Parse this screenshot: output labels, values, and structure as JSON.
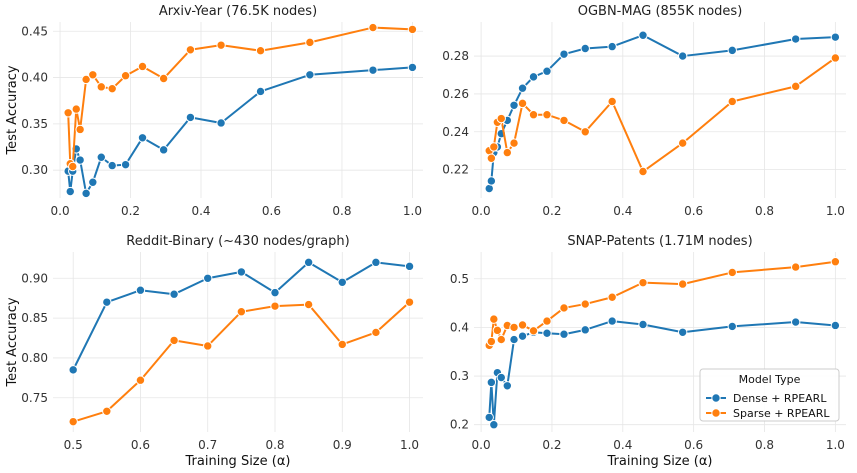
{
  "figure": {
    "legend": {
      "title": "Model Type",
      "placement": "lower-right of SNAP-Patents panel"
    },
    "series_style": [
      {
        "name": "Dense + RPEARL",
        "color": "#1f77b4"
      },
      {
        "name": "Sparse + RPEARL",
        "color": "#ff7f0e"
      }
    ]
  },
  "chart_data": [
    {
      "type": "line",
      "title": "Arxiv-Year (76.5K nodes)",
      "xlabel": "",
      "ylabel": "Test Accuracy",
      "xlim": [
        -0.02,
        1.03
      ],
      "ylim": [
        0.27,
        0.46
      ],
      "xticks": [
        0.0,
        0.2,
        0.4,
        0.6,
        0.8,
        1.0
      ],
      "xtick_labels": [
        "0.0",
        "0.2",
        "0.4",
        "0.6",
        "0.8",
        "1.0"
      ],
      "yticks": [
        0.3,
        0.35,
        0.4,
        0.45
      ],
      "ytick_labels": [
        "0.30",
        "0.35",
        "0.40",
        "0.45"
      ],
      "grid": true,
      "series": [
        {
          "name": "Dense + RPEARL",
          "x": [
            0.023,
            0.029,
            0.036,
            0.046,
            0.057,
            0.074,
            0.093,
            0.117,
            0.148,
            0.186,
            0.234,
            0.294,
            0.37,
            0.457,
            0.569,
            0.709,
            0.888,
            1.0
          ],
          "values": [
            0.299,
            0.277,
            0.299,
            0.323,
            0.311,
            0.275,
            0.287,
            0.314,
            0.305,
            0.306,
            0.335,
            0.322,
            0.357,
            0.351,
            0.385,
            0.403,
            0.408,
            0.411
          ]
        },
        {
          "name": "Sparse + RPEARL",
          "x": [
            0.023,
            0.029,
            0.036,
            0.046,
            0.057,
            0.074,
            0.093,
            0.117,
            0.148,
            0.186,
            0.234,
            0.294,
            0.37,
            0.457,
            0.569,
            0.709,
            0.888,
            1.0
          ],
          "values": [
            0.362,
            0.307,
            0.304,
            0.366,
            0.344,
            0.398,
            0.403,
            0.39,
            0.388,
            0.402,
            0.412,
            0.399,
            0.43,
            0.435,
            0.429,
            0.438,
            0.454,
            0.452
          ]
        }
      ]
    },
    {
      "type": "line",
      "title": "OGBN-MAG (855K nodes)",
      "xlabel": "",
      "ylabel": "",
      "xlim": [
        -0.02,
        1.03
      ],
      "ylim": [
        0.205,
        0.298
      ],
      "xticks": [
        0.0,
        0.2,
        0.4,
        0.6,
        0.8,
        1.0
      ],
      "xtick_labels": [
        "0.0",
        "0.2",
        "0.4",
        "0.6",
        "0.8",
        "1.0"
      ],
      "yticks": [
        0.22,
        0.24,
        0.26,
        0.28
      ],
      "ytick_labels": [
        "0.22",
        "0.24",
        "0.26",
        "0.28"
      ],
      "grid": true,
      "series": [
        {
          "name": "Dense + RPEARL",
          "x": [
            0.023,
            0.029,
            0.036,
            0.046,
            0.057,
            0.074,
            0.093,
            0.117,
            0.148,
            0.186,
            0.234,
            0.294,
            0.37,
            0.457,
            0.569,
            0.709,
            0.888,
            1.0
          ],
          "values": [
            0.21,
            0.214,
            0.229,
            0.232,
            0.239,
            0.246,
            0.254,
            0.263,
            0.269,
            0.272,
            0.281,
            0.284,
            0.285,
            0.291,
            0.28,
            0.283,
            0.289,
            0.29
          ]
        },
        {
          "name": "Sparse + RPEARL",
          "x": [
            0.023,
            0.029,
            0.036,
            0.046,
            0.057,
            0.074,
            0.093,
            0.117,
            0.148,
            0.186,
            0.234,
            0.294,
            0.37,
            0.457,
            0.569,
            0.709,
            0.888,
            1.0
          ],
          "values": [
            0.23,
            0.226,
            0.232,
            0.245,
            0.247,
            0.229,
            0.234,
            0.255,
            0.249,
            0.249,
            0.246,
            0.24,
            0.256,
            0.219,
            0.234,
            0.256,
            0.264,
            0.279
          ]
        }
      ]
    },
    {
      "type": "line",
      "title": "Reddit-Binary (~430 nodes/graph)",
      "xlabel": "Training Size (α)",
      "ylabel": "Test Accuracy",
      "xlim": [
        0.47,
        1.02
      ],
      "ylim": [
        0.707,
        0.933
      ],
      "xticks": [
        0.5,
        0.6,
        0.7,
        0.8,
        0.9,
        1.0
      ],
      "xtick_labels": [
        "0.5",
        "0.6",
        "0.7",
        "0.8",
        "0.9",
        "1.0"
      ],
      "yticks": [
        0.75,
        0.8,
        0.85,
        0.9
      ],
      "ytick_labels": [
        "0.75",
        "0.80",
        "0.85",
        "0.90"
      ],
      "grid": true,
      "series": [
        {
          "name": "Dense + RPEARL",
          "x": [
            0.5,
            0.55,
            0.6,
            0.65,
            0.7,
            0.75,
            0.8,
            0.85,
            0.9,
            0.95,
            1.0
          ],
          "values": [
            0.785,
            0.87,
            0.885,
            0.88,
            0.9,
            0.908,
            0.882,
            0.92,
            0.895,
            0.92,
            0.915
          ]
        },
        {
          "name": "Sparse + RPEARL",
          "x": [
            0.5,
            0.55,
            0.6,
            0.65,
            0.7,
            0.75,
            0.8,
            0.85,
            0.9,
            0.95,
            1.0
          ],
          "values": [
            0.72,
            0.733,
            0.772,
            0.822,
            0.815,
            0.858,
            0.865,
            0.867,
            0.817,
            0.832,
            0.87
          ]
        }
      ]
    },
    {
      "type": "line",
      "title": "SNAP-Patents (1.71M nodes)",
      "xlabel": "Training Size (α)",
      "ylabel": "",
      "xlim": [
        -0.02,
        1.03
      ],
      "ylim": [
        0.185,
        0.555
      ],
      "xticks": [
        0.0,
        0.2,
        0.4,
        0.6,
        0.8,
        1.0
      ],
      "xtick_labels": [
        "0.0",
        "0.2",
        "0.4",
        "0.6",
        "0.8",
        "1.0"
      ],
      "yticks": [
        0.2,
        0.3,
        0.4,
        0.5
      ],
      "ytick_labels": [
        "0.2",
        "0.3",
        "0.4",
        "0.5"
      ],
      "grid": true,
      "series": [
        {
          "name": "Dense + RPEARL",
          "x": [
            0.023,
            0.029,
            0.036,
            0.046,
            0.057,
            0.074,
            0.093,
            0.117,
            0.148,
            0.186,
            0.234,
            0.294,
            0.37,
            0.457,
            0.569,
            0.709,
            0.888,
            1.0
          ],
          "values": [
            0.215,
            0.287,
            0.2,
            0.307,
            0.297,
            0.28,
            0.375,
            0.382,
            0.39,
            0.388,
            0.386,
            0.395,
            0.413,
            0.406,
            0.39,
            0.402,
            0.411,
            0.404
          ]
        },
        {
          "name": "Sparse + RPEARL",
          "x": [
            0.023,
            0.029,
            0.036,
            0.046,
            0.057,
            0.074,
            0.093,
            0.117,
            0.148,
            0.186,
            0.234,
            0.294,
            0.37,
            0.457,
            0.569,
            0.709,
            0.888,
            1.0
          ],
          "values": [
            0.363,
            0.371,
            0.417,
            0.394,
            0.375,
            0.404,
            0.4,
            0.405,
            0.393,
            0.413,
            0.44,
            0.448,
            0.462,
            0.492,
            0.489,
            0.513,
            0.524,
            0.535
          ]
        }
      ]
    }
  ]
}
